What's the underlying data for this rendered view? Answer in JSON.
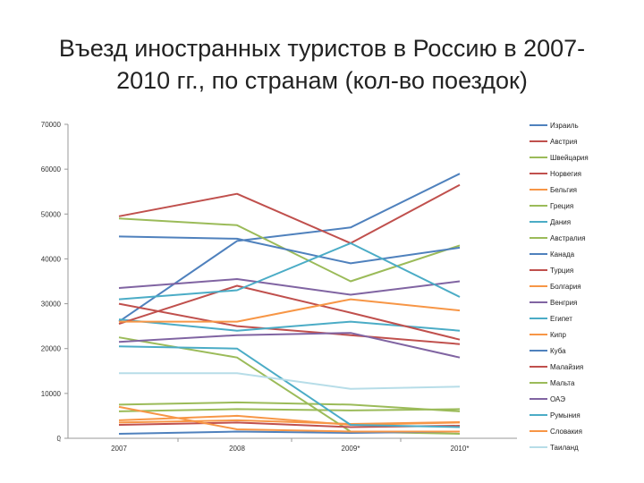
{
  "title_line1": "Въезд иностранных туристов в Россию в 2007-",
  "title_line2": "2010 гг., по странам (кол-во поездок)",
  "chart_data": {
    "type": "line",
    "x": [
      "2007",
      "2008",
      "2009*",
      "2010*"
    ],
    "ylim": [
      0,
      70000
    ],
    "yticks": [
      0,
      10000,
      20000,
      30000,
      40000,
      50000,
      60000,
      70000
    ],
    "grid": false,
    "legend": "right",
    "series": [
      {
        "name": "Израиль",
        "color": "#4f81bd",
        "values": [
          26000,
          44000,
          47000,
          59000
        ]
      },
      {
        "name": "Австрия",
        "color": "#c0504d",
        "values": [
          30000,
          25000,
          23000,
          21000
        ]
      },
      {
        "name": "Швейцария",
        "color": "#9bbb59",
        "values": [
          6000,
          6500,
          6200,
          6500
        ]
      },
      {
        "name": "Норвегия",
        "color": "#c0504d",
        "values": [
          49500,
          54500,
          43500,
          56500
        ]
      },
      {
        "name": "Бельгия",
        "color": "#f79646",
        "values": [
          3500,
          4000,
          3200,
          3600
        ]
      },
      {
        "name": "Греция",
        "color": "#9bbb59",
        "values": [
          49000,
          47500,
          35000,
          43000
        ]
      },
      {
        "name": "Дания",
        "color": "#4bacc6",
        "values": [
          26500,
          24000,
          26000,
          24000
        ]
      },
      {
        "name": "Австралия",
        "color": "#9bbb59",
        "values": [
          22500,
          18000,
          1500,
          1000
        ]
      },
      {
        "name": "Канада",
        "color": "#4f81bd",
        "values": [
          45000,
          44500,
          39000,
          42500
        ]
      },
      {
        "name": "Турция",
        "color": "#c0504d",
        "values": [
          25500,
          34000,
          28000,
          22000
        ]
      },
      {
        "name": "Болгария",
        "color": "#f79646",
        "values": [
          26000,
          26000,
          31000,
          28500
        ]
      },
      {
        "name": "Венгрия",
        "color": "#8064a2",
        "values": [
          33500,
          35500,
          32000,
          35000
        ]
      },
      {
        "name": "Египет",
        "color": "#4bacc6",
        "values": [
          31000,
          33000,
          43500,
          31500
        ]
      },
      {
        "name": "Кипр",
        "color": "#f79646",
        "values": [
          4000,
          5000,
          3000,
          3500
        ]
      },
      {
        "name": "Куба",
        "color": "#4f81bd",
        "values": [
          1000,
          1500,
          1200,
          1500
        ]
      },
      {
        "name": "Малайзия",
        "color": "#c0504d",
        "values": [
          3000,
          3500,
          2500,
          2800
        ]
      },
      {
        "name": "Мальта",
        "color": "#9bbb59",
        "values": [
          7500,
          8000,
          7500,
          6000
        ]
      },
      {
        "name": "ОАЭ",
        "color": "#8064a2",
        "values": [
          21500,
          23000,
          23500,
          18000
        ]
      },
      {
        "name": "Румыния",
        "color": "#4bacc6",
        "values": [
          20500,
          20000,
          3000,
          2500
        ]
      },
      {
        "name": "Словакия",
        "color": "#f79646",
        "values": [
          7000,
          2000,
          1500,
          1500
        ]
      },
      {
        "name": "Таиланд",
        "color": "#b7dde8",
        "values": [
          14500,
          14500,
          11000,
          11500
        ]
      }
    ]
  }
}
